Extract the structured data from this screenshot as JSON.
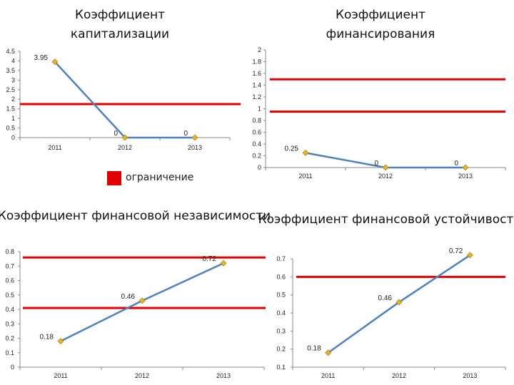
{
  "legend": {
    "label": "ограничение",
    "color": "#e00000"
  },
  "colors": {
    "line": "#4f81bd",
    "marker": "#e6b422",
    "limit": "#e00000",
    "axis": "#888888"
  },
  "chart_data": [
    {
      "type": "line",
      "title": "Коэффициент капитализации",
      "x": [
        "2011",
        "2012",
        "2013"
      ],
      "values": [
        3.95,
        0,
        0
      ],
      "value_labels": [
        "3.95",
        "0",
        "0"
      ],
      "ylim": [
        0,
        4.5
      ],
      "yticks": [
        "0",
        "0.5",
        "1",
        "1.5",
        "2",
        "2.5",
        "3",
        "3.5",
        "4",
        "4.5"
      ],
      "limits": [
        1.75
      ],
      "grid": false
    },
    {
      "type": "line",
      "title": "Коэффициент финансирования",
      "x": [
        "2011",
        "2012",
        "2013"
      ],
      "values": [
        0.25,
        0,
        0
      ],
      "value_labels": [
        "0.25",
        "0",
        "0"
      ],
      "ylim": [
        0,
        2
      ],
      "yticks": [
        "0",
        "0.2",
        "0.4",
        "0.6",
        "0.8",
        "1",
        "1.2",
        "1.4",
        "1.6",
        "1.8",
        "2"
      ],
      "limits": [
        1.5,
        0.95
      ],
      "grid": false
    },
    {
      "type": "line",
      "title": "Коэффициент финансовой независимости",
      "x": [
        "2011",
        "2012",
        "2013"
      ],
      "values": [
        0.18,
        0.46,
        0.72
      ],
      "value_labels": [
        "0.18",
        "0.46",
        "0.72"
      ],
      "ylim": [
        0,
        0.8
      ],
      "yticks": [
        "0",
        "0.1",
        "0.2",
        "0.3",
        "0.4",
        "0.5",
        "0.6",
        "0.7",
        "0.8"
      ],
      "limits": [
        0.76,
        0.41
      ],
      "grid": false
    },
    {
      "type": "line",
      "title": "Коэффициент финансовой устойчивости",
      "x": [
        "2011",
        "2012",
        "2013"
      ],
      "values": [
        0.18,
        0.46,
        0.72
      ],
      "value_labels": [
        "0.18",
        "0.46",
        "0.72"
      ],
      "ylim": [
        0.1,
        0.7
      ],
      "yticks": [
        "0.1",
        "0.2",
        "0.3",
        "0.4",
        "0.5",
        "0.6",
        "0.7"
      ],
      "limits": [
        0.6
      ],
      "grid": false
    }
  ]
}
